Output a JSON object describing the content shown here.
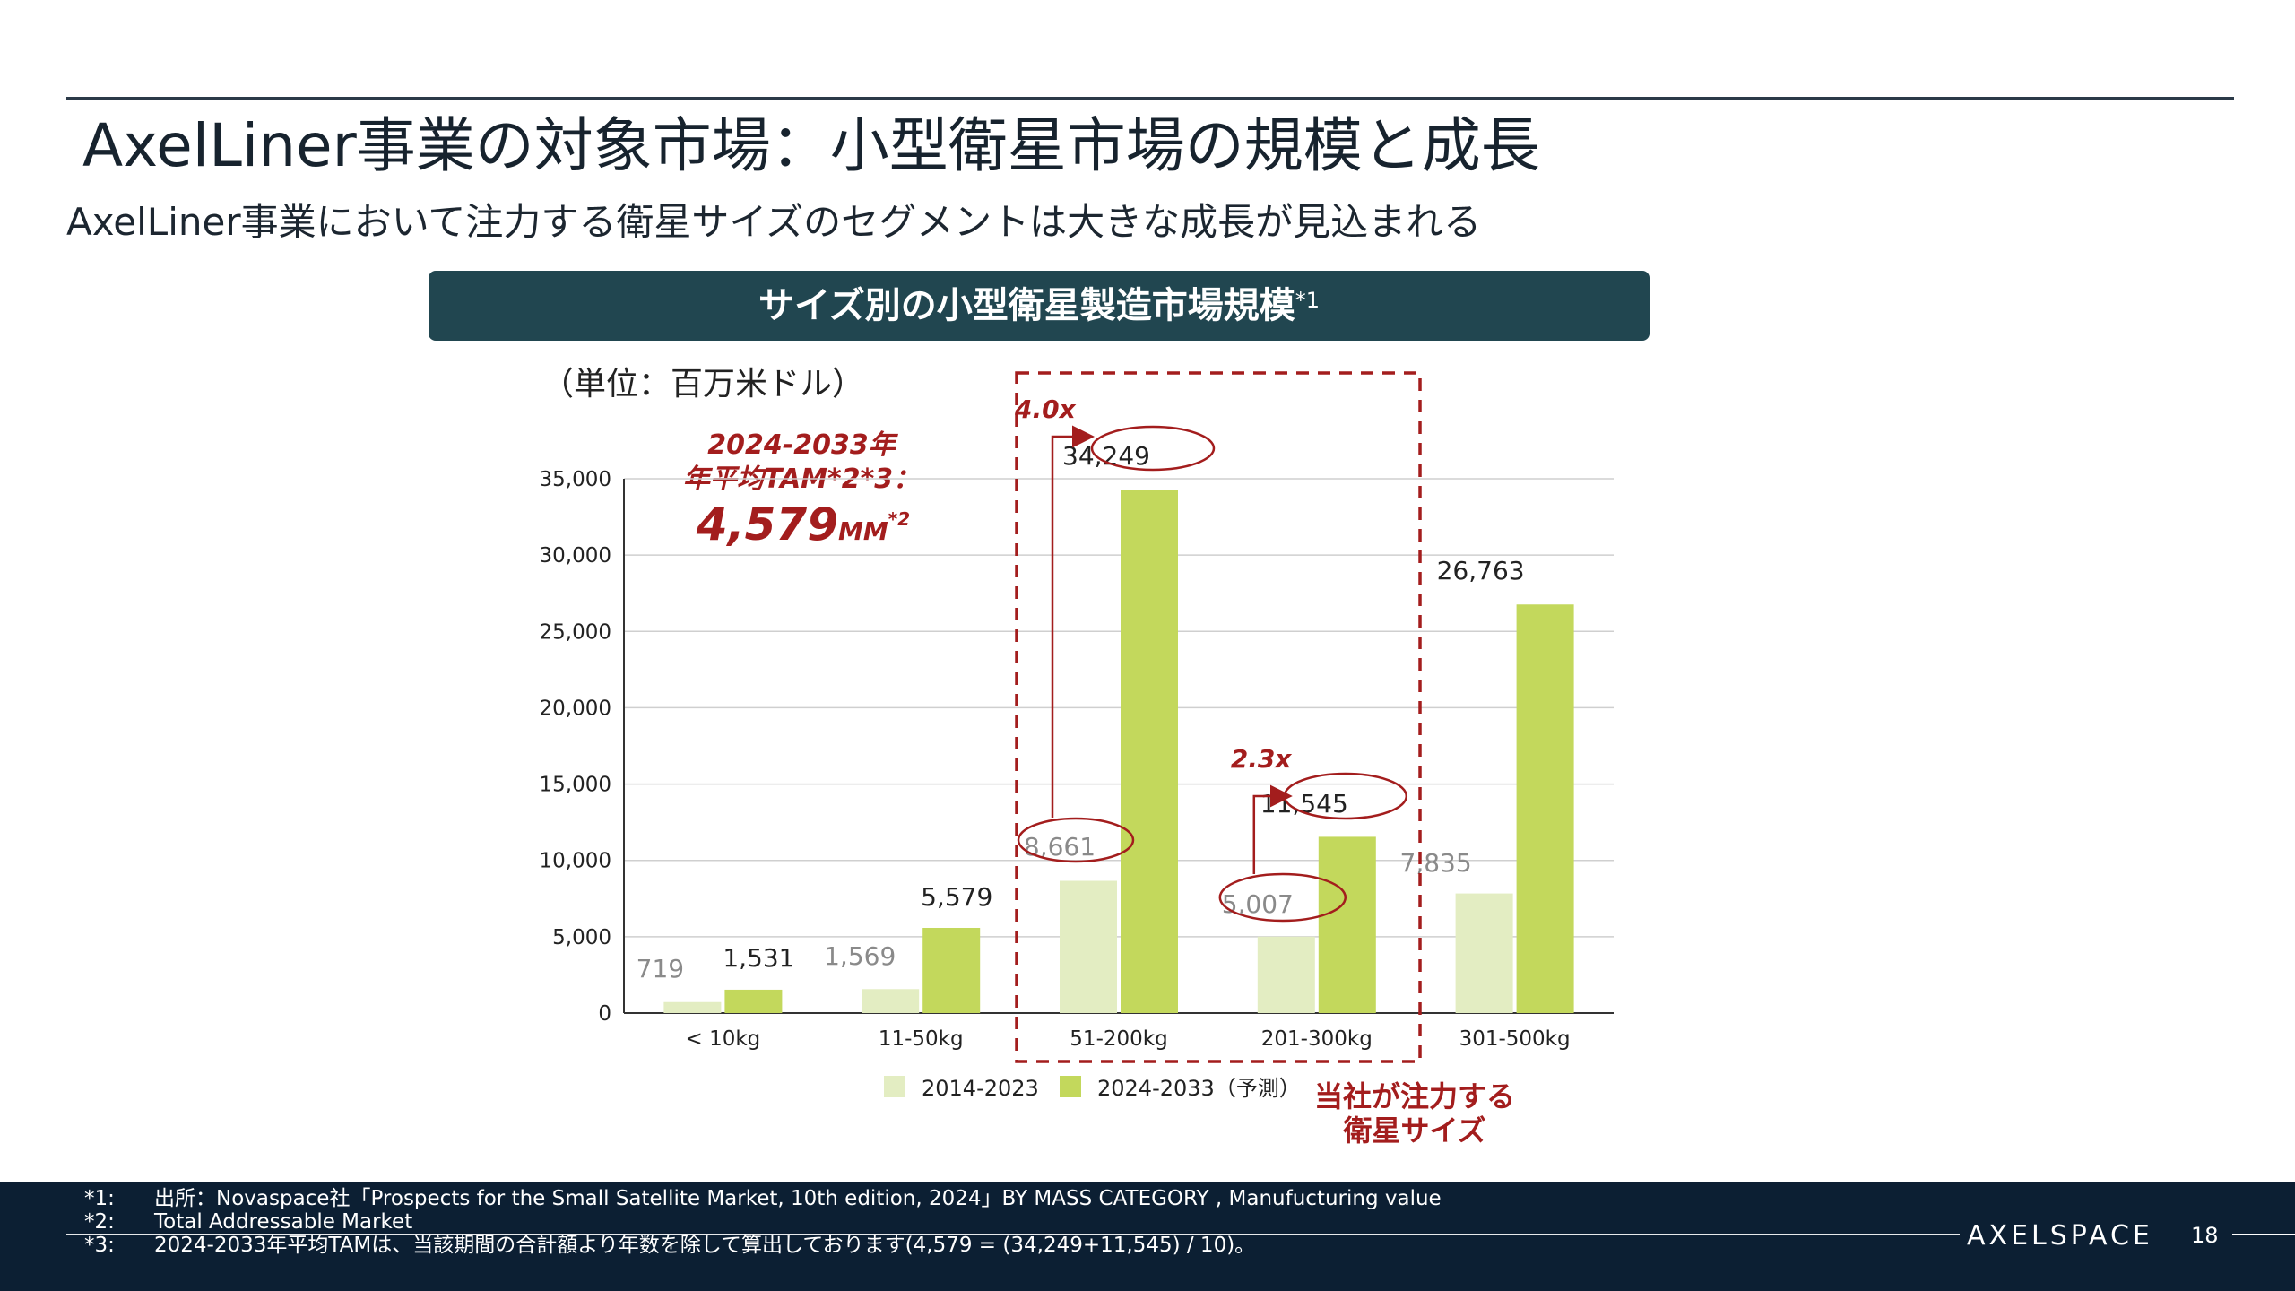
{
  "slide": {
    "title": "AxelLiner事業の対象市場：小型衛星市場の規模と成長",
    "subtitle": "AxelLiner事業において注力する衛星サイズのセグメントは大きな成長が見込まれる",
    "banner_title": "サイズ別の小型衛星製造市場規模",
    "banner_sup": "*1",
    "unit_label": "（単位：百万米ドル）",
    "tam": {
      "line1": "2024-2033年",
      "line2": "年平均TAM*2*3：",
      "value": "4,579",
      "unit": "MM",
      "sup": "*2"
    },
    "focus_label_line1": "当社が注力する",
    "focus_label_line2": "衛星サイズ",
    "growth_labels": {
      "g1": "4.0x",
      "g2": "2.3x"
    },
    "page_number": "18",
    "logo": "AXELSPACE"
  },
  "footnotes": [
    {
      "key": "*1:",
      "text": "出所：Novaspace社「Prospects for the Small Satellite Market, 10th edition, 2024」BY MASS CATEGORY , Manufucturing value"
    },
    {
      "key": "*2:",
      "text": "Total Addressable Market"
    },
    {
      "key": "*3:",
      "text": "2024-2033年平均TAMは、当該期間の合計額より年数を除して算出しております(4,579 = (34,249+11,545) / 10)。"
    }
  ],
  "chart_data": {
    "type": "bar",
    "categories": [
      "< 10kg",
      "11-50kg",
      "51-200kg",
      "201-300kg",
      "301-500kg"
    ],
    "series": [
      {
        "name": "2014-2023",
        "values": [
          719,
          1569,
          8661,
          5007,
          7835
        ],
        "labels": [
          "719",
          "1,569",
          "8,661",
          "5,007",
          "7,835"
        ],
        "color": "#e3edc2",
        "label_color": "#8a8a8a"
      },
      {
        "name": "2024-2033（予測）",
        "values": [
          1531,
          5579,
          34249,
          11545,
          26763
        ],
        "labels": [
          "1,531",
          "5,579",
          "34,249",
          "11,545",
          "26,763"
        ],
        "color": "#c3d85c",
        "label_color": "#222222"
      }
    ],
    "ylim": [
      0,
      35000
    ],
    "yticks": [
      0,
      5000,
      10000,
      15000,
      20000,
      25000,
      30000,
      35000
    ],
    "ytick_labels": [
      "0",
      "5,000",
      "10,000",
      "15,000",
      "20,000",
      "25,000",
      "30,000",
      "35,000"
    ],
    "grid": true,
    "legend": "bottom"
  },
  "colors": {
    "accent_red": "#a31d1d",
    "banner_bg": "#214650",
    "footer_bg": "#0c1f33"
  }
}
